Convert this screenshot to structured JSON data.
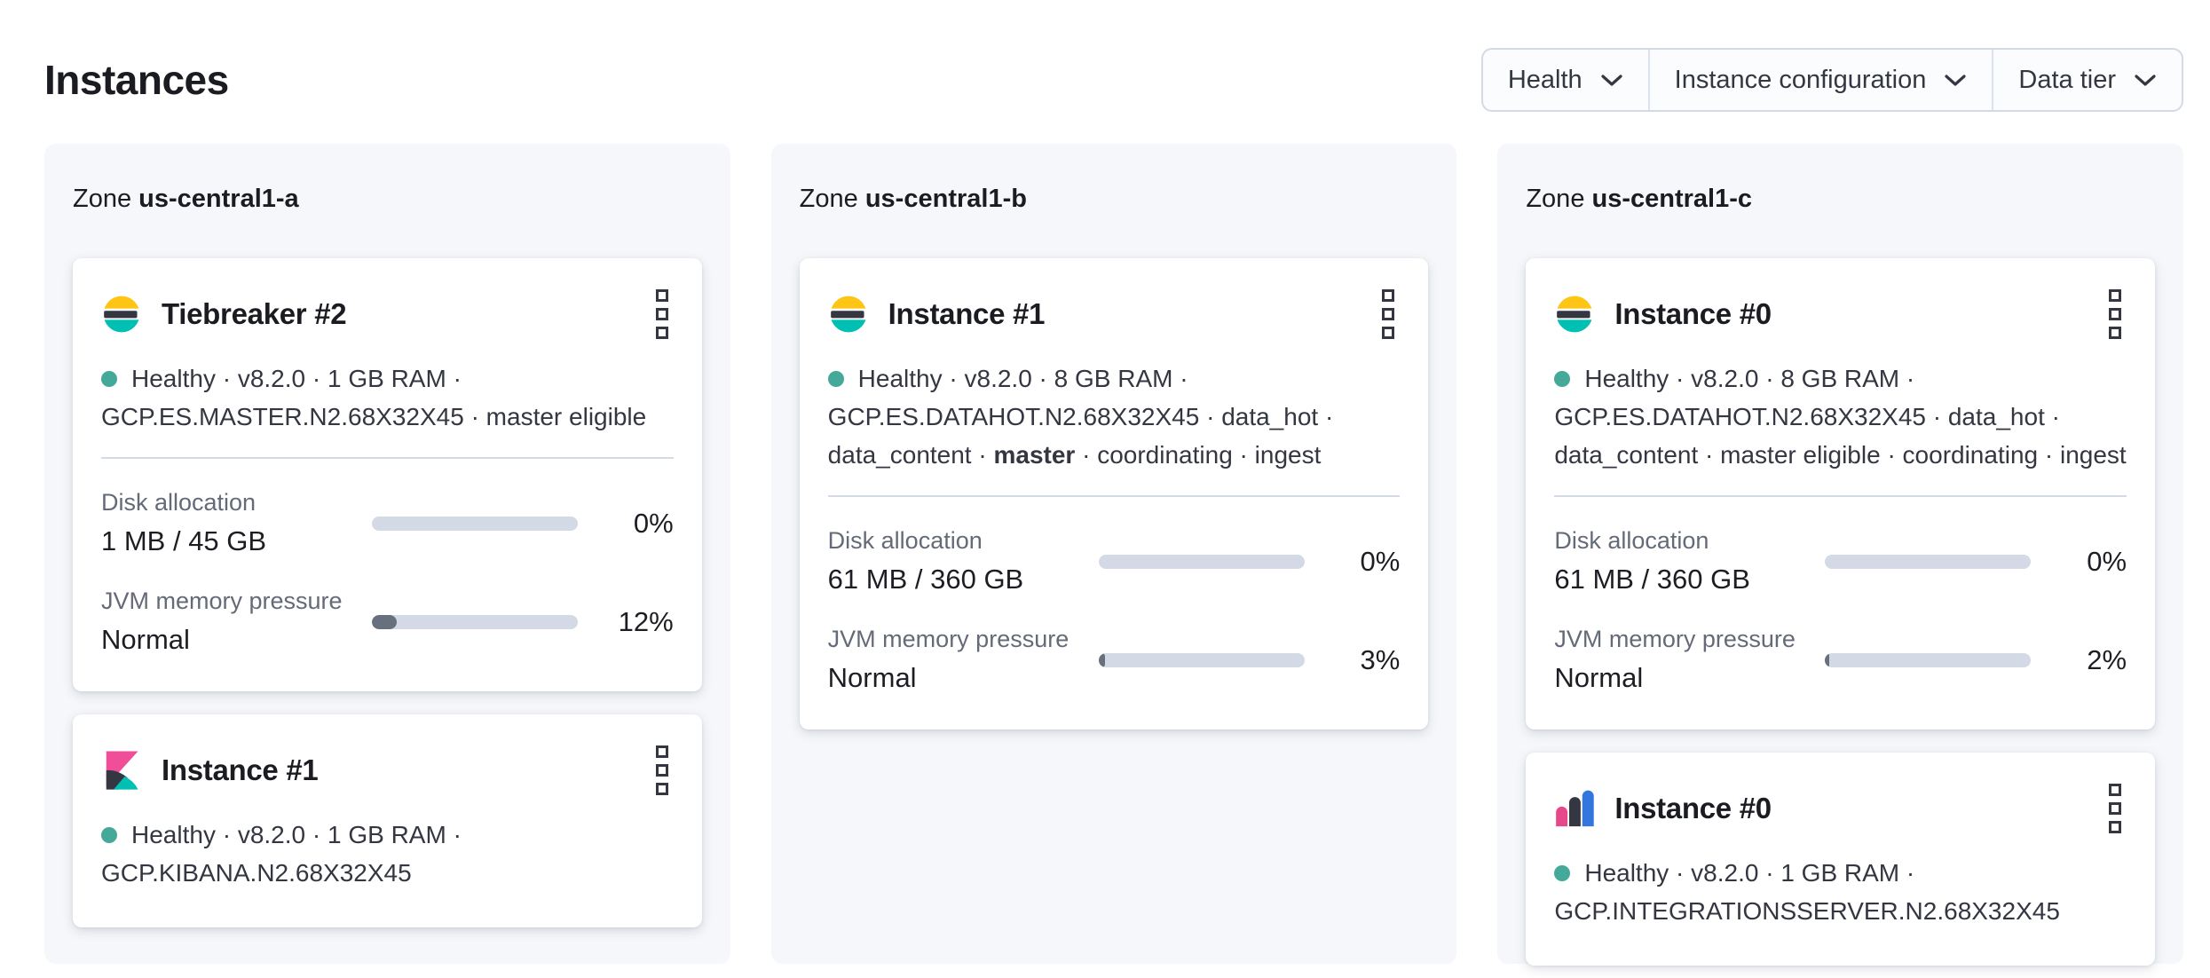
{
  "page": {
    "title": "Instances"
  },
  "filters": {
    "health": {
      "label": "Health"
    },
    "instance_configuration": {
      "label": "Instance configuration"
    },
    "data_tier": {
      "label": "Data tier"
    }
  },
  "zones": [
    {
      "label_prefix": "Zone",
      "name": "us-central1-a",
      "cards": [
        {
          "logo": "elasticsearch-logo",
          "title": "Tiebreaker #2",
          "status_line": "Healthy · v8.2.0 · 1 GB RAM ·",
          "config_line": "GCP.ES.MASTER.N2.68X32X45 · master eligible",
          "metrics": {
            "disk": {
              "label": "Disk allocation",
              "value": "1 MB / 45 GB",
              "percent": "0%",
              "fill": 0
            },
            "jvm": {
              "label": "JVM memory pressure",
              "value": "Normal",
              "percent": "12%",
              "fill": 12
            }
          }
        },
        {
          "logo": "kibana-logo",
          "title": "Instance #1",
          "status_line": "Healthy · v8.2.0 · 1 GB RAM ·",
          "config_line": "GCP.KIBANA.N2.68X32X45"
        }
      ]
    },
    {
      "label_prefix": "Zone",
      "name": "us-central1-b",
      "cards": [
        {
          "logo": "elasticsearch-logo",
          "title": "Instance #1",
          "status_line": "Healthy · v8.2.0 · 8 GB RAM ·",
          "config_line": "GCP.ES.DATAHOT.N2.68X32X45 · data_hot ·",
          "roles_pre": "data_content · ",
          "roles_bold": "master",
          "roles_post": " · coordinating · ingest",
          "metrics": {
            "disk": {
              "label": "Disk allocation",
              "value": "61 MB / 360 GB",
              "percent": "0%",
              "fill": 0
            },
            "jvm": {
              "label": "JVM memory pressure",
              "value": "Normal",
              "percent": "3%",
              "fill": 3
            }
          }
        }
      ]
    },
    {
      "label_prefix": "Zone",
      "name": "us-central1-c",
      "cards": [
        {
          "logo": "elasticsearch-logo",
          "title": "Instance #0",
          "status_line": "Healthy · v8.2.0 · 8 GB RAM ·",
          "config_line": "GCP.ES.DATAHOT.N2.68X32X45 · data_hot ·",
          "roles": "data_content · master eligible · coordinating · ingest",
          "metrics": {
            "disk": {
              "label": "Disk allocation",
              "value": "61 MB / 360 GB",
              "percent": "0%",
              "fill": 0
            },
            "jvm": {
              "label": "JVM memory pressure",
              "value": "Normal",
              "percent": "2%",
              "fill": 2
            }
          }
        },
        {
          "logo": "integrations-server-logo",
          "title": "Instance #0",
          "status_line": "Healthy · v8.2.0 · 1 GB RAM ·",
          "config_line": "GCP.INTEGRATIONSSERVER.N2.68X32X45"
        }
      ]
    }
  ],
  "icons": {
    "card_menu": "boxes-vertical-icon",
    "filter_dropdown": "chevron-down-icon",
    "health": "health-dot-icon"
  },
  "colors": {
    "brand_yellow": "#fec514",
    "brand_teal": "#00bfb3",
    "brand_pink": "#f04e98",
    "brand_blue": "#3377de",
    "brand_dark": "#343741",
    "health_ok": "#45a999",
    "bar_track": "#d3dae6",
    "bar_fill": "#69707d",
    "panel_bg": "#f5f7fa"
  }
}
